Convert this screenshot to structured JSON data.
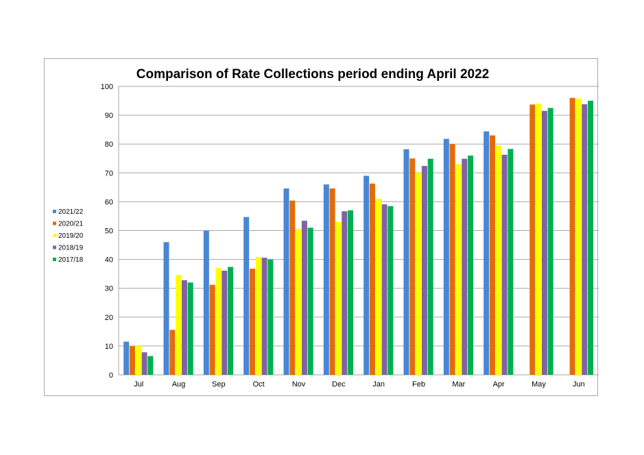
{
  "chart_data": {
    "type": "bar",
    "title": "Comparison of Rate Collections period ending April 2022",
    "xlabel": "",
    "ylabel": "",
    "ylim": [
      0,
      100
    ],
    "yticks": [
      "0",
      "10",
      "20",
      "30",
      "40",
      "50",
      "60",
      "70",
      "80",
      "90",
      "100"
    ],
    "grid": true,
    "legend_position": "left",
    "categories": [
      "Jul",
      "Aug",
      "Sep",
      "Oct",
      "Nov",
      "Dec",
      "Jan",
      "Feb",
      "Mar",
      "Apr",
      "May",
      "Jun"
    ],
    "series": [
      {
        "name": "2021/22",
        "color": "#4a86d4",
        "values": [
          11.5,
          46,
          50,
          54.7,
          64.6,
          66,
          69,
          78.2,
          81.8,
          84.4,
          null,
          null
        ]
      },
      {
        "name": "2020/21",
        "color": "#e36c0a",
        "values": [
          9.9,
          15.6,
          31.2,
          36.8,
          60.4,
          64.6,
          66.3,
          75,
          80,
          83,
          93.7,
          96
        ]
      },
      {
        "name": "2019/20",
        "color": "#ffff00",
        "values": [
          10,
          34.6,
          37,
          40.8,
          50.6,
          53,
          61,
          70,
          73,
          79.5,
          94,
          95.8
        ]
      },
      {
        "name": "2018/19",
        "color": "#8064a2",
        "values": [
          7.8,
          32.8,
          36.1,
          40.6,
          53.4,
          56.7,
          59.1,
          72.4,
          74.9,
          76.3,
          91.5,
          93.8
        ]
      },
      {
        "name": "2017/18",
        "color": "#00b050",
        "values": [
          6.5,
          32,
          37.4,
          40,
          51,
          57,
          58.5,
          74.9,
          76,
          78.3,
          92.5,
          95
        ]
      }
    ]
  }
}
